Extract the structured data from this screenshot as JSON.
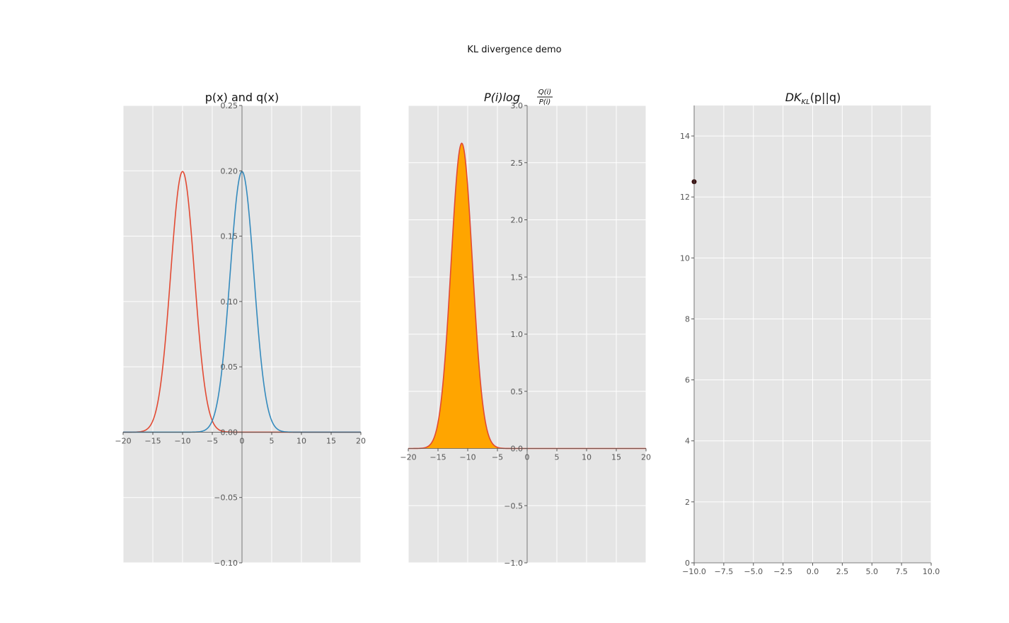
{
  "figure": {
    "suptitle": "KL divergence demo"
  },
  "chart_data": [
    {
      "type": "line",
      "title": "p(x) and q(x)",
      "xlim": [
        -20,
        20
      ],
      "ylim": [
        -0.1,
        0.25
      ],
      "xticks": [
        -20,
        -15,
        -10,
        -5,
        0,
        5,
        10,
        15,
        20
      ],
      "xtick_labels": [
        "−20",
        "−15",
        "−10",
        "−5",
        "0",
        "5",
        "10",
        "15",
        "20"
      ],
      "yticks": [
        -0.1,
        -0.05,
        0.0,
        0.05,
        0.1,
        0.15,
        0.2,
        0.25
      ],
      "ytick_labels": [
        "−0.10",
        "−0.05",
        "0.00",
        "0.05",
        "0.10",
        "0.15",
        "0.20",
        "0.25"
      ],
      "spines": "centered",
      "grid": true,
      "series": [
        {
          "kind": "gaussian",
          "mean": -10,
          "std": 2,
          "color": "#e24a33"
        },
        {
          "kind": "gaussian",
          "mean": 0,
          "std": 2,
          "color": "#348abd"
        }
      ]
    },
    {
      "type": "area",
      "title_main": "P(i)log",
      "title_num": "Q(i)",
      "title_den": "P(i)",
      "xlim": [
        -20,
        20
      ],
      "ylim": [
        -1.0,
        3.0
      ],
      "xticks": [
        -20,
        -15,
        -10,
        -5,
        0,
        5,
        10,
        15,
        20
      ],
      "xtick_labels": [
        "−20",
        "−15",
        "−10",
        "−5",
        "0",
        "5",
        "10",
        "15",
        "20"
      ],
      "yticks": [
        -1.0,
        -0.5,
        0.0,
        0.5,
        1.0,
        1.5,
        2.0,
        2.5,
        3.0
      ],
      "ytick_labels": [
        "−1.0",
        "−0.5",
        "0.0",
        "0.5",
        "1.0",
        "1.5",
        "2.0",
        "2.5",
        "3.0"
      ],
      "spines": "centered",
      "grid": true,
      "series": [
        {
          "kind": "gaussian",
          "mean": -11,
          "std": 1.8,
          "peak": 2.67,
          "fill": "#ffa500",
          "color": "#e24a33"
        }
      ]
    },
    {
      "type": "scatter",
      "title_main": "DK",
      "title_sub": "KL",
      "title_rest": "(p||q)",
      "xlim": [
        -10,
        10
      ],
      "ylim": [
        0,
        15
      ],
      "xticks": [
        -10,
        -7.5,
        -5,
        -2.5,
        0,
        2.5,
        5,
        7.5,
        10
      ],
      "xtick_labels": [
        "−10.0",
        "−7.5",
        "−5.0",
        "−2.5",
        "0.0",
        "2.5",
        "5.0",
        "7.5",
        "10.0"
      ],
      "yticks": [
        0,
        2,
        4,
        6,
        8,
        10,
        12,
        14
      ],
      "ytick_labels": [
        "0",
        "2",
        "4",
        "6",
        "8",
        "10",
        "12",
        "14"
      ],
      "grid": true,
      "points": [
        {
          "x": -10,
          "y": 12.5,
          "color": "#3a1010"
        }
      ]
    }
  ]
}
